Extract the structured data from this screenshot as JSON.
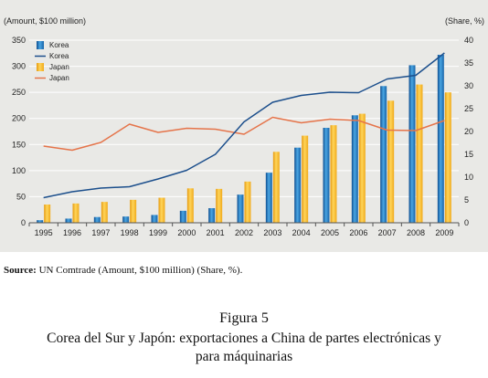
{
  "chart_data": {
    "type": "bar+line",
    "left_axis_title": "(Amount, $100 million)",
    "right_axis_title": "(Share, %)",
    "categories": [
      "1995",
      "1996",
      "1997",
      "1998",
      "1999",
      "2000",
      "2001",
      "2002",
      "2003",
      "2004",
      "2005",
      "2006",
      "2007",
      "2008",
      "2009"
    ],
    "ylim_left": [
      0,
      350
    ],
    "yticks_left": [
      0,
      50,
      100,
      150,
      200,
      250,
      300,
      350
    ],
    "ylim_right": [
      0,
      40
    ],
    "yticks_right": [
      0,
      5,
      10,
      15,
      20,
      25,
      30,
      35,
      40
    ],
    "series": [
      {
        "name": "Korea",
        "kind": "bar",
        "axis": "left",
        "color": "#1f6fb6",
        "values": [
          5,
          8,
          11,
          12,
          15,
          23,
          28,
          54,
          96,
          144,
          182,
          206,
          262,
          302,
          322
        ]
      },
      {
        "name": "Korea",
        "kind": "line",
        "axis": "right",
        "color": "#1c4f8c",
        "values": [
          5.5,
          6.8,
          7.6,
          7.9,
          9.6,
          11.5,
          15.0,
          22.1,
          26.4,
          27.9,
          28.6,
          28.5,
          31.5,
          32.3,
          37.2
        ]
      },
      {
        "name": "Japan",
        "kind": "bar",
        "axis": "left",
        "color": "#f4b41a",
        "values": [
          35,
          37,
          40,
          44,
          48,
          66,
          65,
          79,
          136,
          167,
          187,
          209,
          234,
          265,
          250
        ]
      },
      {
        "name": "Japan",
        "kind": "line",
        "axis": "right",
        "color": "#e5744a",
        "values": [
          16.8,
          15.9,
          17.6,
          21.6,
          19.8,
          20.7,
          20.5,
          19.4,
          23.1,
          21.9,
          22.7,
          22.4,
          20.3,
          20.2,
          22.4
        ]
      }
    ],
    "legend": [
      "Korea",
      "Korea",
      "Japan",
      "Japan"
    ],
    "legend_position": "top-left",
    "grid": "horizontal"
  },
  "source": {
    "label": "Source:",
    "text": "UN Comtrade (Amount, $100 million) (Share, %)."
  },
  "figure_label": "Figura 5",
  "figure_caption": "Corea del Sur y Japón: exportaciones a China de partes electrónicas y para máquinarias"
}
